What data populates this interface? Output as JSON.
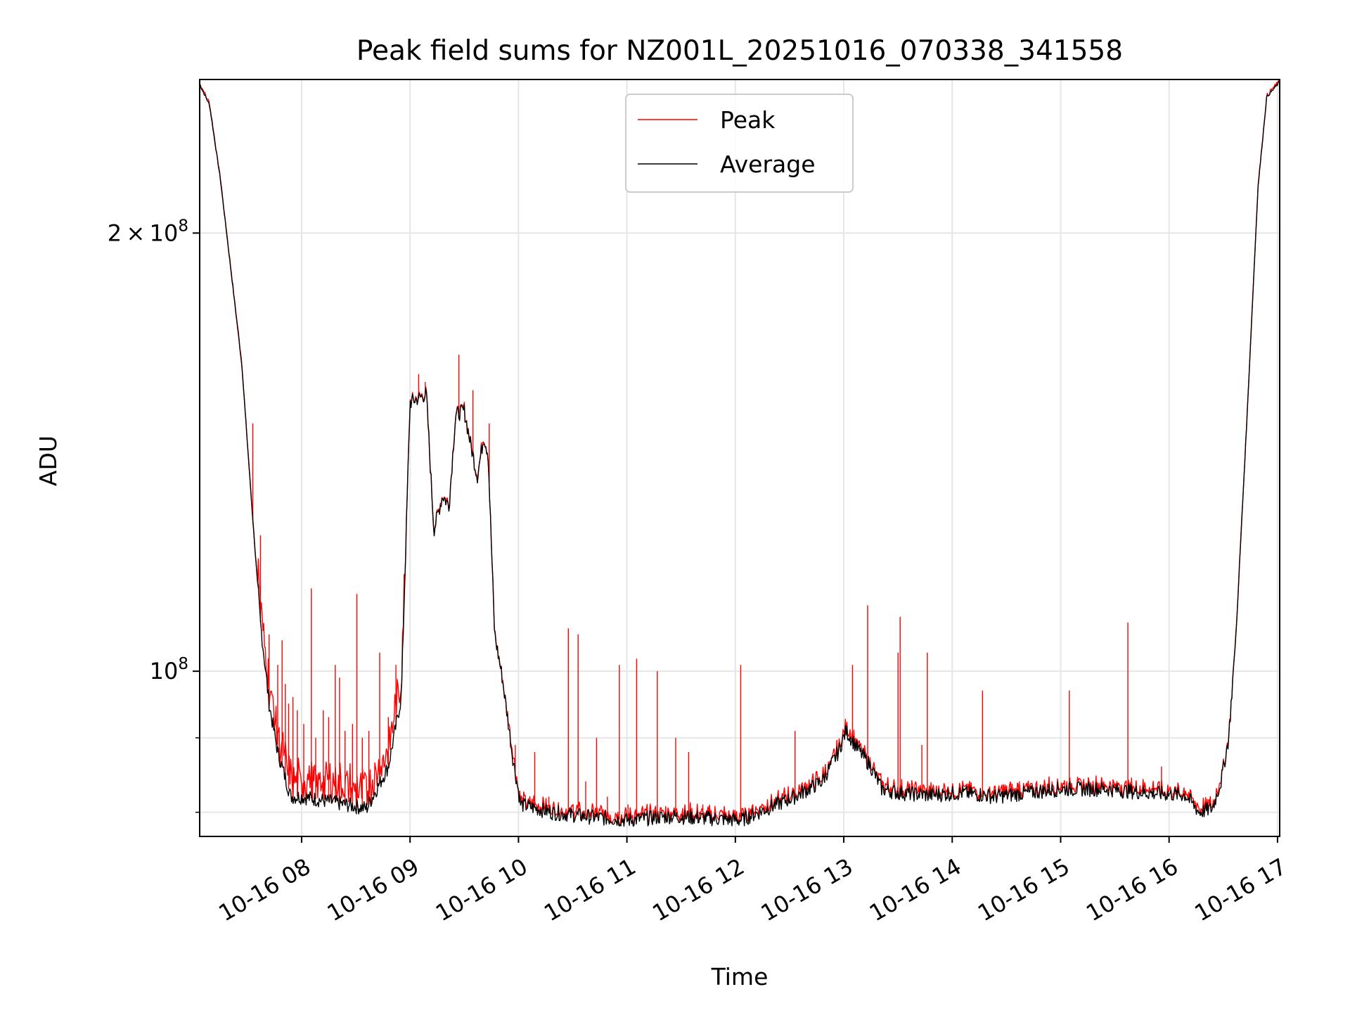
{
  "chart_data": {
    "type": "line",
    "title": "Peak field sums for NZ001L_20251016_070338_341558",
    "xlabel": "Time",
    "ylabel": "ADU",
    "yscale": "log",
    "ylim": [
      77000000,
      255000000
    ],
    "xlim_hours": [
      7.06,
      17.02
    ],
    "grid": true,
    "legend_position": "upper center",
    "x_ticks": [
      {
        "hour": 8,
        "label": "10-16 08"
      },
      {
        "hour": 9,
        "label": "10-16 09"
      },
      {
        "hour": 10,
        "label": "10-16 10"
      },
      {
        "hour": 11,
        "label": "10-16 11"
      },
      {
        "hour": 12,
        "label": "10-16 12"
      },
      {
        "hour": 13,
        "label": "10-16 13"
      },
      {
        "hour": 14,
        "label": "10-16 14"
      },
      {
        "hour": 15,
        "label": "10-16 15"
      },
      {
        "hour": 16,
        "label": "10-16 16"
      },
      {
        "hour": 17,
        "label": "10-16 17"
      }
    ],
    "y_major_ticks": [
      {
        "value": 100000000,
        "mantissa": "",
        "base": "10",
        "exp": "8"
      },
      {
        "value": 200000000,
        "mantissa": "2",
        "base": "10",
        "exp": "8"
      }
    ],
    "y_minor_ticks": [
      80000000,
      90000000
    ],
    "series": [
      {
        "name": "Peak",
        "color": "#ff0000",
        "base_from": "Average",
        "spikes": [
          {
            "t": 7.55,
            "v": 148000000
          },
          {
            "t": 7.62,
            "v": 124000000
          },
          {
            "t": 7.7,
            "v": 106000000
          },
          {
            "t": 7.78,
            "v": 101000000
          },
          {
            "t": 7.82,
            "v": 105000000
          },
          {
            "t": 7.85,
            "v": 98000000
          },
          {
            "t": 7.88,
            "v": 95000000
          },
          {
            "t": 7.92,
            "v": 96000000
          },
          {
            "t": 7.96,
            "v": 94000000
          },
          {
            "t": 8.02,
            "v": 92000000
          },
          {
            "t": 8.09,
            "v": 114000000
          },
          {
            "t": 8.13,
            "v": 90000000
          },
          {
            "t": 8.2,
            "v": 94000000
          },
          {
            "t": 8.25,
            "v": 93000000
          },
          {
            "t": 8.31,
            "v": 101000000
          },
          {
            "t": 8.35,
            "v": 99000000
          },
          {
            "t": 8.4,
            "v": 91000000
          },
          {
            "t": 8.47,
            "v": 92000000
          },
          {
            "t": 8.51,
            "v": 113000000
          },
          {
            "t": 8.56,
            "v": 90000000
          },
          {
            "t": 8.62,
            "v": 91000000
          },
          {
            "t": 8.72,
            "v": 103000000
          },
          {
            "t": 8.8,
            "v": 93000000
          },
          {
            "t": 8.87,
            "v": 101000000
          },
          {
            "t": 9.08,
            "v": 160000000
          },
          {
            "t": 9.14,
            "v": 158000000
          },
          {
            "t": 9.45,
            "v": 165000000
          },
          {
            "t": 9.58,
            "v": 156000000
          },
          {
            "t": 9.73,
            "v": 148000000
          },
          {
            "t": 9.97,
            "v": 89000000
          },
          {
            "t": 10.15,
            "v": 88000000
          },
          {
            "t": 10.28,
            "v": 82000000
          },
          {
            "t": 10.46,
            "v": 107000000
          },
          {
            "t": 10.55,
            "v": 106000000
          },
          {
            "t": 10.62,
            "v": 84000000
          },
          {
            "t": 10.72,
            "v": 90000000
          },
          {
            "t": 10.82,
            "v": 82000000
          },
          {
            "t": 10.93,
            "v": 101000000
          },
          {
            "t": 11.01,
            "v": 81000000
          },
          {
            "t": 11.09,
            "v": 102000000
          },
          {
            "t": 11.28,
            "v": 100000000
          },
          {
            "t": 11.45,
            "v": 90000000
          },
          {
            "t": 11.57,
            "v": 88000000
          },
          {
            "t": 11.7,
            "v": 81000000
          },
          {
            "t": 12.05,
            "v": 101000000
          },
          {
            "t": 12.2,
            "v": 80000000
          },
          {
            "t": 12.55,
            "v": 91000000
          },
          {
            "t": 12.72,
            "v": 84000000
          },
          {
            "t": 13.08,
            "v": 101000000
          },
          {
            "t": 13.22,
            "v": 111000000
          },
          {
            "t": 13.5,
            "v": 103000000
          },
          {
            "t": 13.52,
            "v": 109000000
          },
          {
            "t": 13.72,
            "v": 89000000
          },
          {
            "t": 13.77,
            "v": 103000000
          },
          {
            "t": 14.28,
            "v": 97000000
          },
          {
            "t": 14.62,
            "v": 84000000
          },
          {
            "t": 14.92,
            "v": 84000000
          },
          {
            "t": 15.08,
            "v": 97000000
          },
          {
            "t": 15.62,
            "v": 108000000
          },
          {
            "t": 15.93,
            "v": 86000000
          },
          {
            "t": 16.06,
            "v": 83000000
          }
        ]
      },
      {
        "name": "Average",
        "color": "#000000",
        "points": [
          [
            7.06,
            253000000
          ],
          [
            7.15,
            245000000
          ],
          [
            7.25,
            218000000
          ],
          [
            7.35,
            188000000
          ],
          [
            7.45,
            162000000
          ],
          [
            7.55,
            127000000
          ],
          [
            7.62,
            108000000
          ],
          [
            7.7,
            95000000
          ],
          [
            7.78,
            88000000
          ],
          [
            7.9,
            82000000
          ],
          [
            8.0,
            82000000
          ],
          [
            8.2,
            81500000
          ],
          [
            8.4,
            81000000
          ],
          [
            8.6,
            80500000
          ],
          [
            8.8,
            86000000
          ],
          [
            8.92,
            96000000
          ],
          [
            9.0,
            153000000
          ],
          [
            9.08,
            154000000
          ],
          [
            9.15,
            155000000
          ],
          [
            9.22,
            125000000
          ],
          [
            9.3,
            132000000
          ],
          [
            9.36,
            130000000
          ],
          [
            9.42,
            150000000
          ],
          [
            9.5,
            151000000
          ],
          [
            9.56,
            143000000
          ],
          [
            9.62,
            136000000
          ],
          [
            9.68,
            145000000
          ],
          [
            9.72,
            141000000
          ],
          [
            9.78,
            106000000
          ],
          [
            9.85,
            99000000
          ],
          [
            9.95,
            87000000
          ],
          [
            10.02,
            81000000
          ],
          [
            10.3,
            80000000
          ],
          [
            10.6,
            79500000
          ],
          [
            11.0,
            79000000
          ],
          [
            11.4,
            79500000
          ],
          [
            11.8,
            79200000
          ],
          [
            12.05,
            79000000
          ],
          [
            12.3,
            80500000
          ],
          [
            12.55,
            82000000
          ],
          [
            12.8,
            84000000
          ],
          [
            12.95,
            88000000
          ],
          [
            13.02,
            91000000
          ],
          [
            13.15,
            88000000
          ],
          [
            13.25,
            86000000
          ],
          [
            13.35,
            83000000
          ],
          [
            13.5,
            82500000
          ],
          [
            13.8,
            82200000
          ],
          [
            14.1,
            82500000
          ],
          [
            14.4,
            82000000
          ],
          [
            14.7,
            82500000
          ],
          [
            15.0,
            83000000
          ],
          [
            15.4,
            83000000
          ],
          [
            15.8,
            82500000
          ],
          [
            16.15,
            82200000
          ],
          [
            16.28,
            80000000
          ],
          [
            16.4,
            80500000
          ],
          [
            16.48,
            84000000
          ],
          [
            16.55,
            90000000
          ],
          [
            16.62,
            107000000
          ],
          [
            16.72,
            150000000
          ],
          [
            16.82,
            215000000
          ],
          [
            16.9,
            248000000
          ],
          [
            17.02,
            254000000
          ]
        ]
      }
    ]
  }
}
